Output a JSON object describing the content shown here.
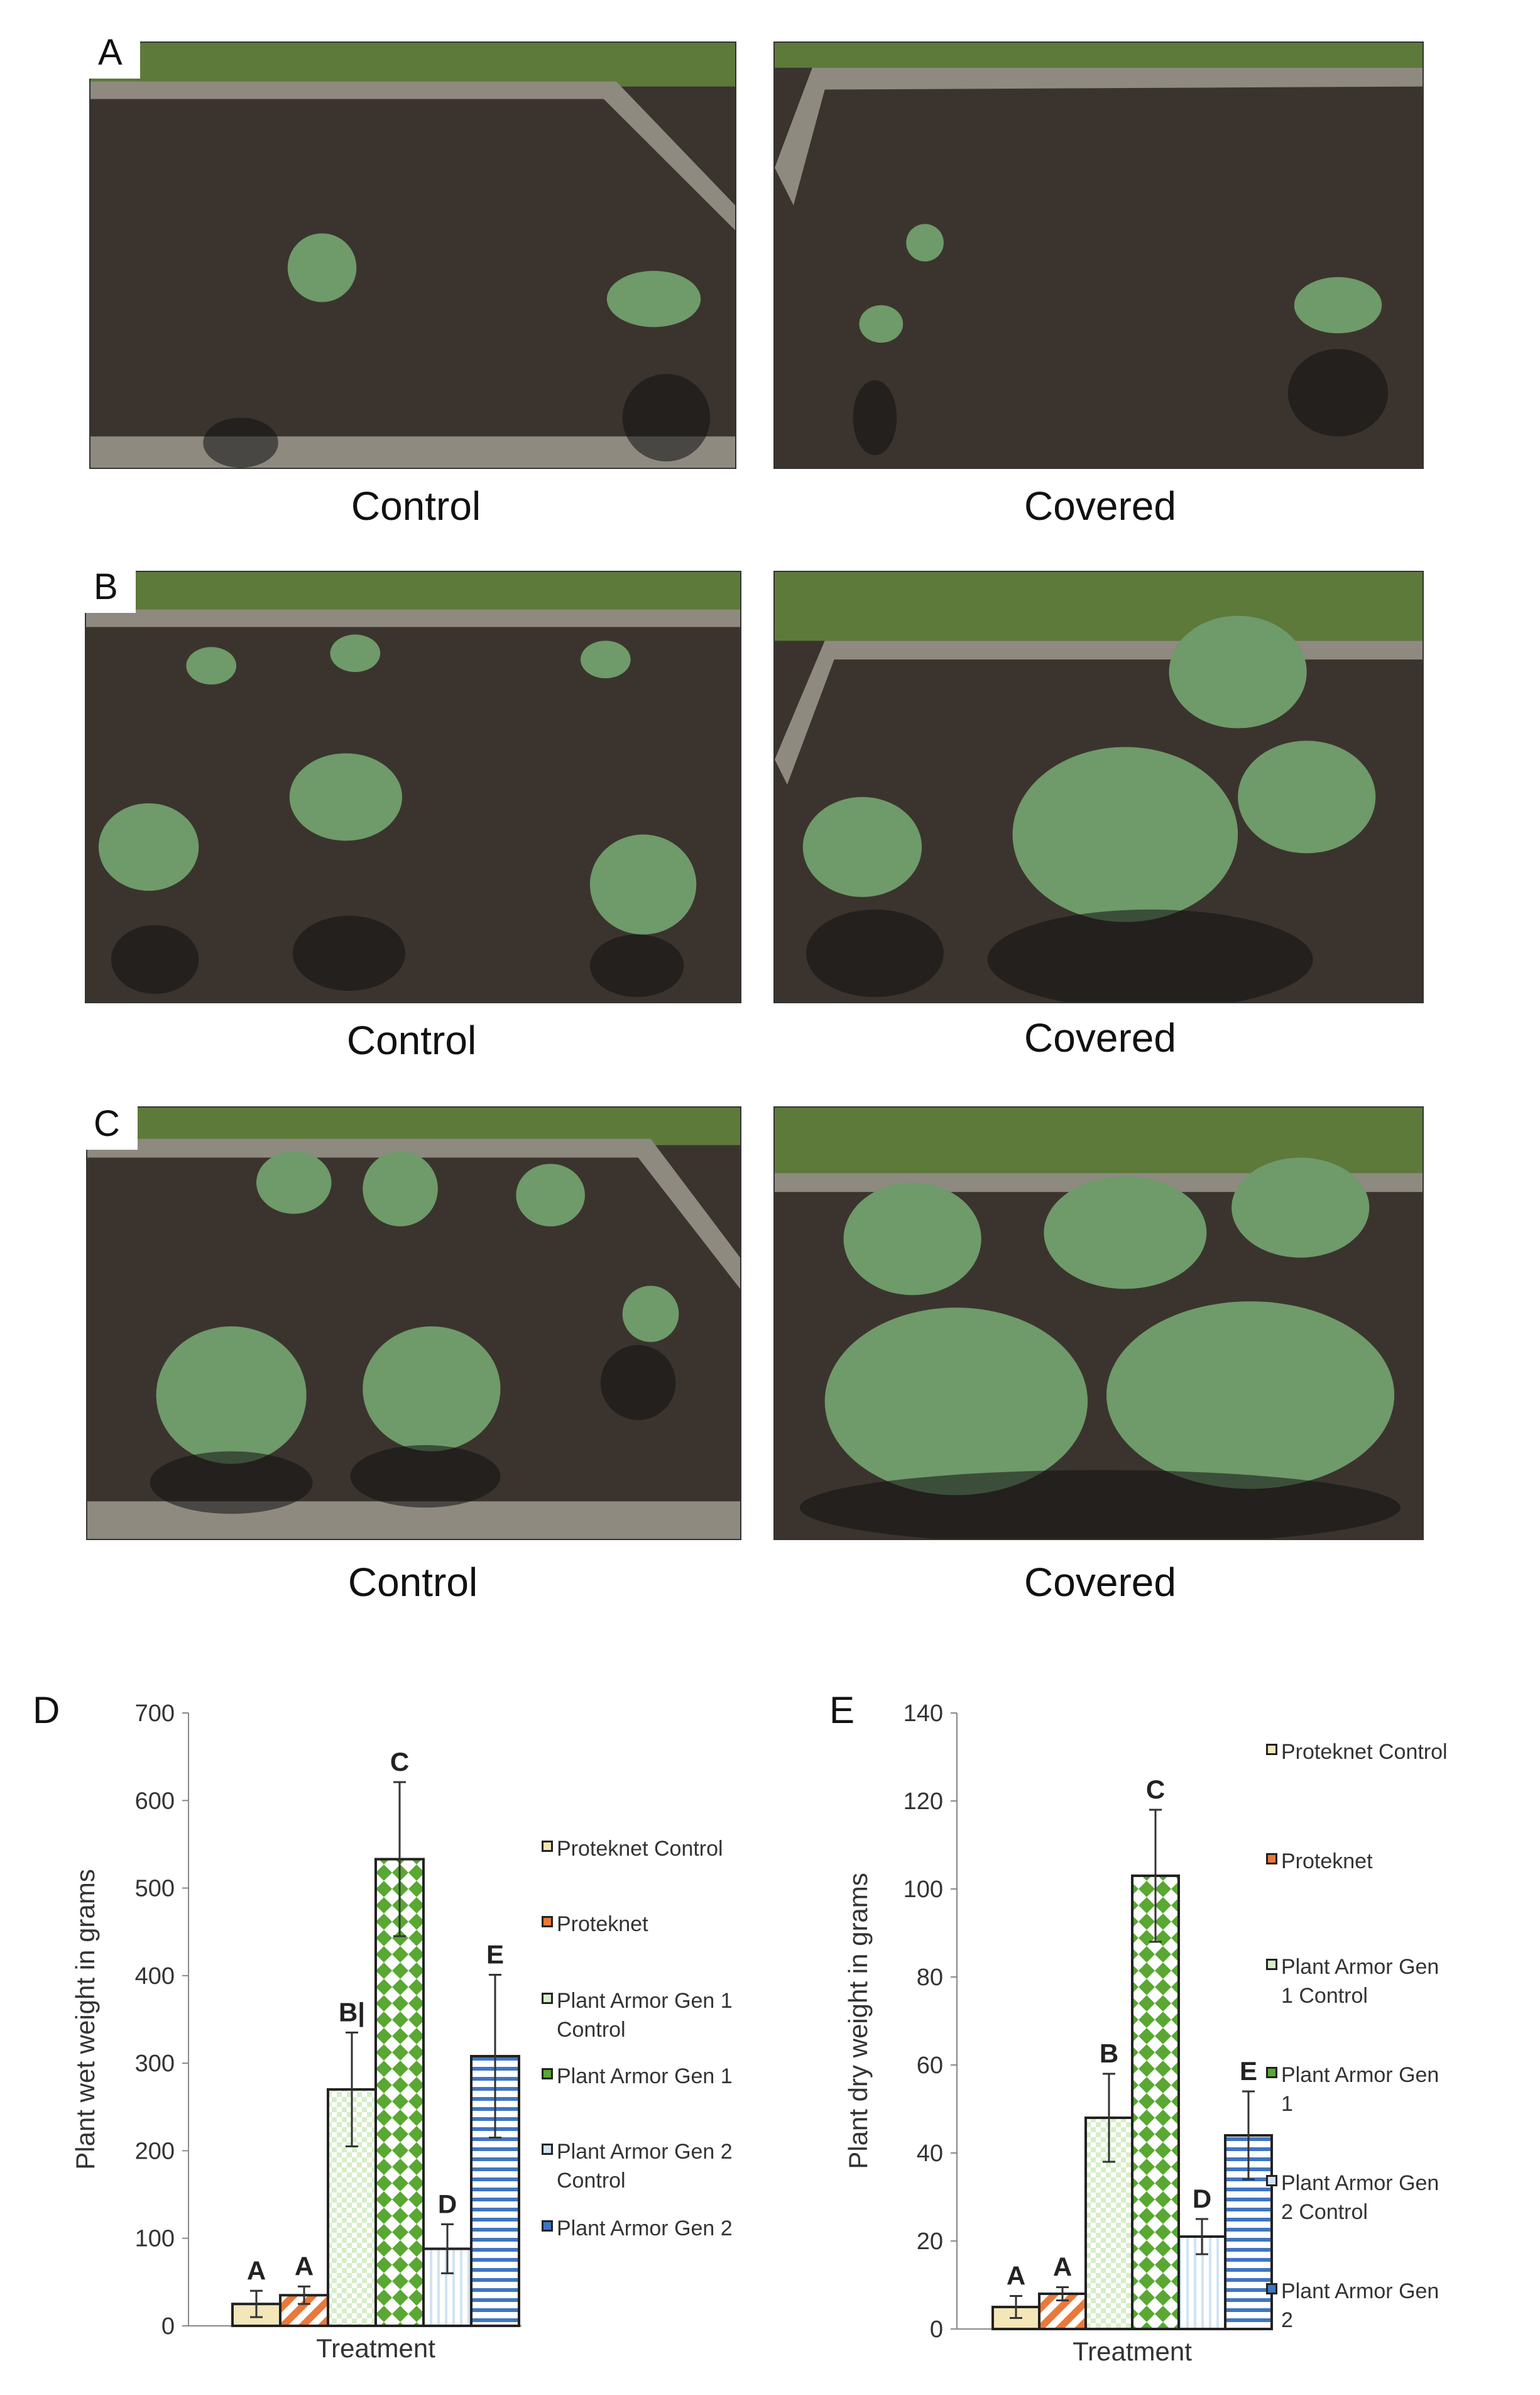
{
  "rows": [
    {
      "letter": "A",
      "left_caption": "Control",
      "right_caption": "Covered"
    },
    {
      "letter": "B",
      "left_caption": "Control",
      "right_caption": "Covered"
    },
    {
      "letter": "C",
      "left_caption": "Control",
      "right_caption": "Covered"
    }
  ],
  "colors": {
    "soil": "#3b342e",
    "frame": "#8e8a80",
    "grass": "#5d7a3a",
    "cabbage": "#6f9a6a",
    "shadow": "#111111"
  },
  "legend_colors": [
    "#f3e6b8",
    "#e8793a",
    "#d6eec8",
    "#58a832",
    "#d0e3f2",
    "#3f75c4"
  ],
  "chart_data": [
    {
      "panel": "D",
      "type": "bar",
      "ylabel": "Plant wet weight in grams",
      "xlabel": "Treatment",
      "ylim": [
        0,
        700
      ],
      "yticks": [
        "0",
        "100",
        "200",
        "300",
        "400",
        "500",
        "600",
        "700"
      ],
      "series": [
        {
          "name": "Proteknet Control",
          "value": 25,
          "error": 15,
          "letter": "A"
        },
        {
          "name": "Proteknet",
          "value": 35,
          "error": 10,
          "letter": "A"
        },
        {
          "name": "Plant Armor Gen 1 Control",
          "value": 270,
          "error": 65,
          "letter": "B|"
        },
        {
          "name": "Plant Armor Gen 1",
          "value": 533,
          "error": 88,
          "letter": "C"
        },
        {
          "name": "Plant Armor Gen 2 Control",
          "value": 88,
          "error": 28,
          "letter": "D"
        },
        {
          "name": "Plant Armor Gen 2",
          "value": 308,
          "error": 93,
          "letter": "E"
        }
      ]
    },
    {
      "panel": "E",
      "type": "bar",
      "ylabel": "Plant dry weight in grams",
      "xlabel": "Treatment",
      "ylim": [
        0,
        140
      ],
      "yticks": [
        "0",
        "20",
        "40",
        "60",
        "80",
        "100",
        "120",
        "140"
      ],
      "series": [
        {
          "name": "Proteknet Control",
          "value": 5,
          "error": 2.5,
          "letter": "A"
        },
        {
          "name": "Proteknet",
          "value": 8,
          "error": 1.5,
          "letter": "A"
        },
        {
          "name": "Plant Armor Gen 1 Control",
          "value": 48,
          "error": 10,
          "letter": "B"
        },
        {
          "name": "Plant Armor Gen 1",
          "value": 103,
          "error": 15,
          "letter": "C"
        },
        {
          "name": "Plant Armor Gen 2 Control",
          "value": 21,
          "error": 4,
          "letter": "D"
        },
        {
          "name": "Plant Armor Gen 2",
          "value": 44,
          "error": 10,
          "letter": "E"
        }
      ]
    }
  ],
  "legend_d": [
    "Proteknet Control",
    "Proteknet",
    "Plant Armor Gen 1\nControl",
    "Plant Armor Gen 1",
    "Plant Armor Gen 2\nControl",
    "Plant Armor Gen 2"
  ],
  "legend_e": [
    "Proteknet Control",
    "Proteknet",
    "Plant Armor Gen\n1 Control",
    "Plant Armor Gen\n1",
    "Plant Armor Gen\n2 Control",
    "Plant Armor Gen\n2"
  ]
}
